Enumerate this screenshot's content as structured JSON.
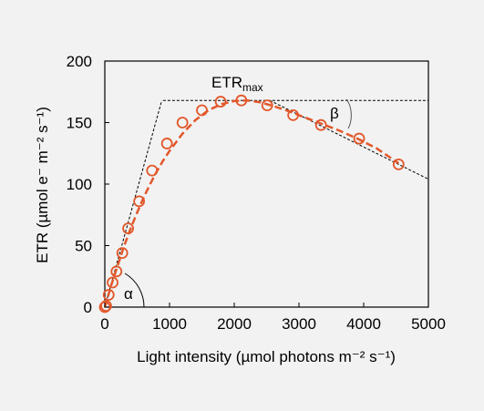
{
  "chart_data": {
    "type": "scatter",
    "title": "",
    "xlabel": "Light intensity (µmol photons m⁻² s⁻¹)",
    "ylabel": "ETR (µmol e⁻ m⁻² s⁻¹)",
    "xlim": [
      0,
      5000
    ],
    "ylim": [
      0,
      200
    ],
    "xticks": [
      "0",
      "1000",
      "2000",
      "3000",
      "4000",
      "5000"
    ],
    "yticks": [
      "0",
      "50",
      "100",
      "150",
      "200"
    ],
    "grid": false,
    "series": [
      {
        "color": "#e2572a",
        "marker": "open-circle",
        "x": [
          0,
          20,
          60,
          120,
          180,
          270,
          360,
          530,
          730,
          960,
          1200,
          1500,
          1790,
          2110,
          2510,
          2910,
          3340,
          3930,
          4540
        ],
        "y": [
          0,
          1,
          10,
          20,
          29,
          44,
          64,
          86,
          111,
          133,
          150,
          160,
          167,
          168,
          164,
          156,
          148,
          137,
          116
        ]
      }
    ],
    "fit_curve": {
      "color": "#e2572a",
      "style": "dashed",
      "x": [
        0,
        100,
        200,
        300,
        400,
        500,
        600,
        700,
        800,
        900,
        1000,
        1200,
        1400,
        1600,
        1800,
        2000,
        2200,
        2400,
        2600,
        2800,
        3000,
        3300,
        3600,
        3900,
        4200,
        4540
      ],
      "y": [
        0,
        18,
        34,
        50,
        64,
        77,
        89,
        100,
        110,
        119,
        127,
        141,
        152,
        160,
        165,
        167.5,
        168,
        166.5,
        163.5,
        160,
        156,
        150,
        144,
        137,
        129,
        117
      ]
    },
    "reference_lines": {
      "color": "#000000",
      "style": "dotted",
      "etrmax_level": 168,
      "initial_slope_line": {
        "x": [
          0,
          880
        ],
        "y": [
          0,
          168
        ]
      },
      "decline_line": {
        "x": [
          2550,
          5000
        ],
        "y": [
          168,
          104
        ]
      }
    },
    "annotations": {
      "etrmax_main": "ETR",
      "etrmax_sub": "max",
      "alpha": "α",
      "beta": "β"
    }
  }
}
